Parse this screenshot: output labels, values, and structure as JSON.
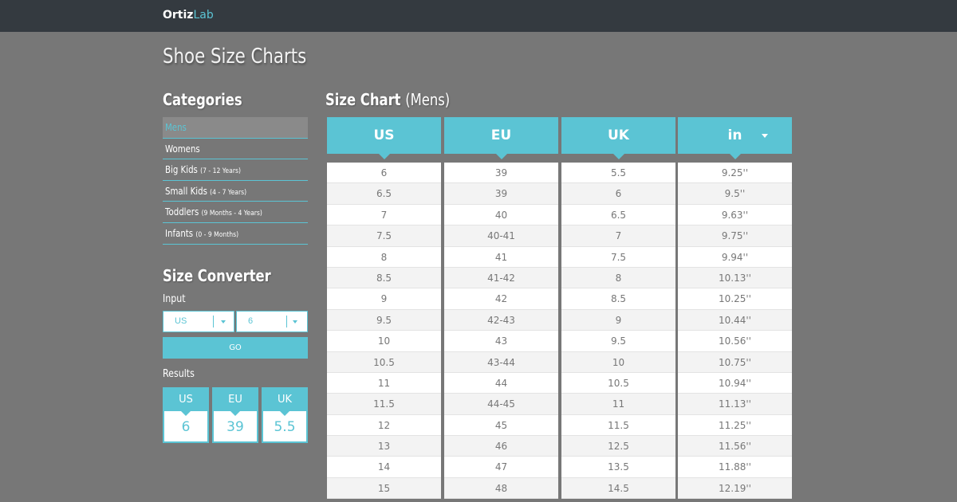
{
  "brand": {
    "part1": "Ortiz",
    "part2": "Lab"
  },
  "page_title": "Shoe Size Charts",
  "categories": {
    "heading": "Categories",
    "items": [
      {
        "label": "Mens",
        "sub": "",
        "active": true
      },
      {
        "label": "Womens",
        "sub": ""
      },
      {
        "label": "Big Kids",
        "sub": "(7 - 12 Years)"
      },
      {
        "label": "Small Kids",
        "sub": "(4 - 7 Years)"
      },
      {
        "label": "Toddlers",
        "sub": "(9 Months - 4 Years)"
      },
      {
        "label": "Infants",
        "sub": "(0 - 9 Months)"
      }
    ]
  },
  "converter": {
    "heading": "Size Converter",
    "input_label": "Input",
    "system_value": "US",
    "size_value": "6",
    "go_label": "GO",
    "results_label": "Results",
    "results": [
      {
        "label": "US",
        "value": "6"
      },
      {
        "label": "EU",
        "value": "39"
      },
      {
        "label": "UK",
        "value": "5.5"
      }
    ]
  },
  "size_chart": {
    "title": "Size Chart",
    "subtitle": "(Mens)",
    "accent": "#5bc4d4",
    "columns": [
      {
        "header": "US",
        "dropdown": false,
        "values": [
          "6",
          "6.5",
          "7",
          "7.5",
          "8",
          "8.5",
          "9",
          "9.5",
          "10",
          "10.5",
          "11",
          "11.5",
          "12",
          "13",
          "14",
          "15"
        ]
      },
      {
        "header": "EU",
        "dropdown": false,
        "values": [
          "39",
          "39",
          "40",
          "40-41",
          "41",
          "41-42",
          "42",
          "42-43",
          "43",
          "43-44",
          "44",
          "44-45",
          "45",
          "46",
          "47",
          "48"
        ]
      },
      {
        "header": "UK",
        "dropdown": false,
        "values": [
          "5.5",
          "6",
          "6.5",
          "7",
          "7.5",
          "8",
          "8.5",
          "9",
          "9.5",
          "10",
          "10.5",
          "11",
          "11.5",
          "12.5",
          "13.5",
          "14.5"
        ]
      },
      {
        "header": "in",
        "dropdown": true,
        "values": [
          "9.25''",
          "9.5''",
          "9.63''",
          "9.75''",
          "9.94''",
          "10.13''",
          "10.25''",
          "10.44''",
          "10.56''",
          "10.75''",
          "10.94''",
          "11.13''",
          "11.25''",
          "11.56''",
          "11.88''",
          "12.19''"
        ]
      }
    ]
  }
}
